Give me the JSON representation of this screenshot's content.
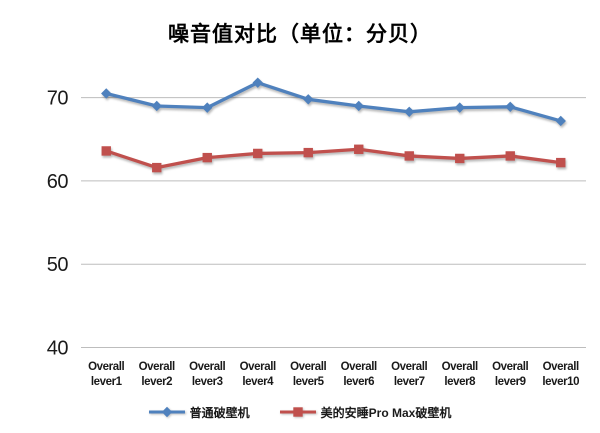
{
  "chart_data": {
    "type": "line",
    "title": "噪音值对比（单位：分贝）",
    "categories": [
      "Overall lever1",
      "Overall lever2",
      "Overall lever3",
      "Overall lever4",
      "Overall lever5",
      "Overall lever6",
      "Overall lever7",
      "Overall lever8",
      "Overall lever9",
      "Overall lever10"
    ],
    "series": [
      {
        "name": "普通破壁机",
        "marker": "diamond",
        "color": "#4F81BD",
        "values": [
          70.5,
          69.0,
          68.8,
          71.8,
          69.8,
          69.0,
          68.3,
          68.8,
          68.9,
          67.2
        ]
      },
      {
        "name": "美的安睡Pro Max破壁机",
        "marker": "square",
        "color": "#C0504D",
        "values": [
          63.6,
          61.6,
          62.8,
          63.3,
          63.4,
          63.8,
          63.0,
          62.7,
          63.0,
          62.2
        ]
      }
    ],
    "ylim": [
      40,
      75
    ],
    "yticks": [
      40,
      50,
      60,
      70
    ],
    "xlabel": "",
    "ylabel": "",
    "gridline_color": "#BDBDBD",
    "legend_position": "bottom",
    "background": "#FFFFFF"
  }
}
